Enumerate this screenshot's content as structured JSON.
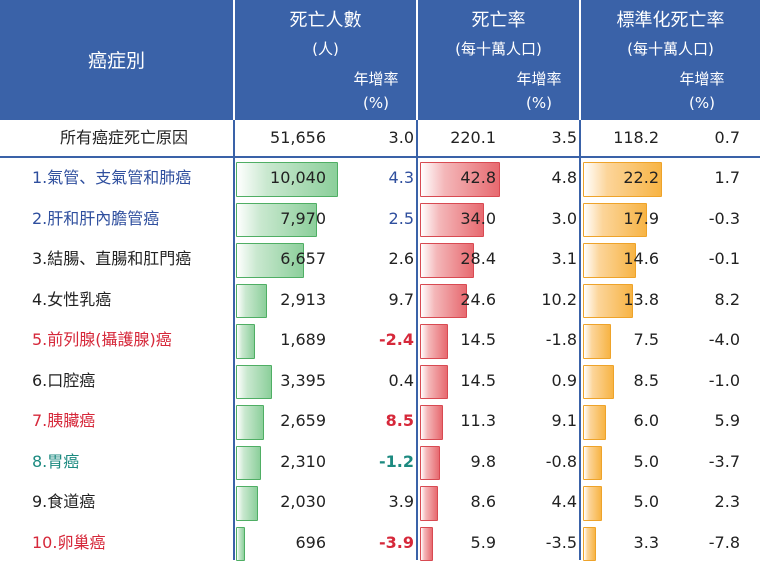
{
  "header": {
    "category": "癌症別",
    "deaths_title": "死亡人數",
    "deaths_unit": "(人)",
    "rate_title": "死亡率",
    "rate_unit": "(每十萬人口)",
    "std_title": "標準化死亡率",
    "std_unit": "(每十萬人口)",
    "growth_label": "年增率",
    "growth_unit": "(%)"
  },
  "colors": {
    "header_bg": "#3a62a8",
    "label_blue": "#2f4f9e",
    "label_red": "#d6283a",
    "label_teal": "#1c8a80",
    "label_black": "#222222",
    "value_blue": "#2f4f9e",
    "value_red": "#d6283a",
    "value_teal": "#1c8a80"
  },
  "chart_data": {
    "type": "table",
    "total": {
      "name": "所有癌症死亡原因",
      "deaths": "51,656",
      "deaths_growth": "3.0",
      "rate": "220.1",
      "rate_growth": "3.5",
      "std": "118.2",
      "std_growth": "0.7"
    },
    "rows": [
      {
        "name": "1.氣管、支氣管和肺癌",
        "label_color": "blue",
        "deaths": "10,040",
        "deaths_n": 10040,
        "deaths_growth": "4.3",
        "growth_color": "blue",
        "rate": "42.8",
        "rate_n": 42.8,
        "rate_growth": "4.8",
        "std": "22.2",
        "std_n": 22.2,
        "std_growth": "1.7"
      },
      {
        "name": "2.肝和肝內膽管癌",
        "label_color": "blue",
        "deaths": "7,970",
        "deaths_n": 7970,
        "deaths_growth": "2.5",
        "growth_color": "blue",
        "rate": "34.0",
        "rate_n": 34.0,
        "rate_growth": "3.0",
        "std": "17.9",
        "std_n": 17.9,
        "std_growth": "-0.3"
      },
      {
        "name": "3.結腸、直腸和肛門癌",
        "label_color": "black",
        "deaths": "6,657",
        "deaths_n": 6657,
        "deaths_growth": "2.6",
        "growth_color": "black",
        "rate": "28.4",
        "rate_n": 28.4,
        "rate_growth": "3.1",
        "std": "14.6",
        "std_n": 14.6,
        "std_growth": "-0.1"
      },
      {
        "name": "4.女性乳癌",
        "label_color": "black",
        "deaths": "2,913",
        "deaths_n": 2913,
        "deaths_growth": "9.7",
        "growth_color": "black",
        "rate": "24.6",
        "rate_n": 24.6,
        "rate_growth": "10.2",
        "std": "13.8",
        "std_n": 13.8,
        "std_growth": "8.2"
      },
      {
        "name": "5.前列腺(攝護腺)癌",
        "label_color": "red",
        "deaths": "1,689",
        "deaths_n": 1689,
        "deaths_growth": "-2.4",
        "growth_color": "red",
        "rate": "14.5",
        "rate_n": 14.5,
        "rate_growth": "-1.8",
        "std": "7.5",
        "std_n": 7.5,
        "std_growth": "-4.0"
      },
      {
        "name": "6.口腔癌",
        "label_color": "black",
        "deaths": "3,395",
        "deaths_n": 3395,
        "deaths_growth": "0.4",
        "growth_color": "black",
        "rate": "14.5",
        "rate_n": 14.5,
        "rate_growth": "0.9",
        "std": "8.5",
        "std_n": 8.5,
        "std_growth": "-1.0"
      },
      {
        "name": "7.胰臟癌",
        "label_color": "red",
        "deaths": "2,659",
        "deaths_n": 2659,
        "deaths_growth": "8.5",
        "growth_color": "red",
        "rate": "11.3",
        "rate_n": 11.3,
        "rate_growth": "9.1",
        "std": "6.0",
        "std_n": 6.0,
        "std_growth": "5.9"
      },
      {
        "name": "8.胃癌",
        "label_color": "teal",
        "deaths": "2,310",
        "deaths_n": 2310,
        "deaths_growth": "-1.2",
        "growth_color": "teal",
        "rate": "9.8",
        "rate_n": 9.8,
        "rate_growth": "-0.8",
        "std": "5.0",
        "std_n": 5.0,
        "std_growth": "-3.7"
      },
      {
        "name": "9.食道癌",
        "label_color": "black",
        "deaths": "2,030",
        "deaths_n": 2030,
        "deaths_growth": "3.9",
        "growth_color": "black",
        "rate": "8.6",
        "rate_n": 8.6,
        "rate_growth": "4.4",
        "std": "5.0",
        "std_n": 5.0,
        "std_growth": "2.3"
      },
      {
        "name": "10.卵巢癌",
        "label_color": "red",
        "deaths": "696",
        "deaths_n": 696,
        "deaths_growth": "-3.9",
        "growth_color": "red",
        "rate": "5.9",
        "rate_n": 5.9,
        "rate_growth": "-3.5",
        "std": "3.3",
        "std_n": 3.3,
        "std_growth": "-7.8"
      }
    ]
  }
}
